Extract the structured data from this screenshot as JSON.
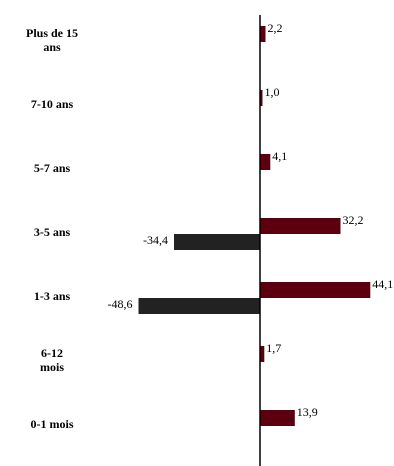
{
  "chart_data": {
    "type": "bar",
    "orientation": "horizontal",
    "categories": [
      [
        "Plus de 15",
        "ans"
      ],
      [
        "7-10 ans"
      ],
      [
        "5-7 ans"
      ],
      [
        "3-5 ans"
      ],
      [
        "1-3 ans"
      ],
      [
        "6-12",
        "mois"
      ],
      [
        "0-1 mois"
      ]
    ],
    "series": [
      {
        "color": "#5c0010",
        "values": [
          2.2,
          1.0,
          4.1,
          32.2,
          44.1,
          1.7,
          13.9
        ],
        "labels": [
          "2,2",
          "1,0",
          "4,1",
          "32,2",
          "44,1",
          "1,7",
          "13,9"
        ]
      },
      {
        "color": "#222222",
        "values": [
          null,
          null,
          null,
          -34.4,
          -48.6,
          null,
          null
        ],
        "labels": [
          "",
          "",
          "",
          "-34,4",
          "-48,6",
          "",
          ""
        ]
      }
    ],
    "title": "",
    "xlabel": "",
    "ylabel": "",
    "xlim": [
      -58,
      62
    ],
    "grid": false,
    "legend": "none"
  }
}
